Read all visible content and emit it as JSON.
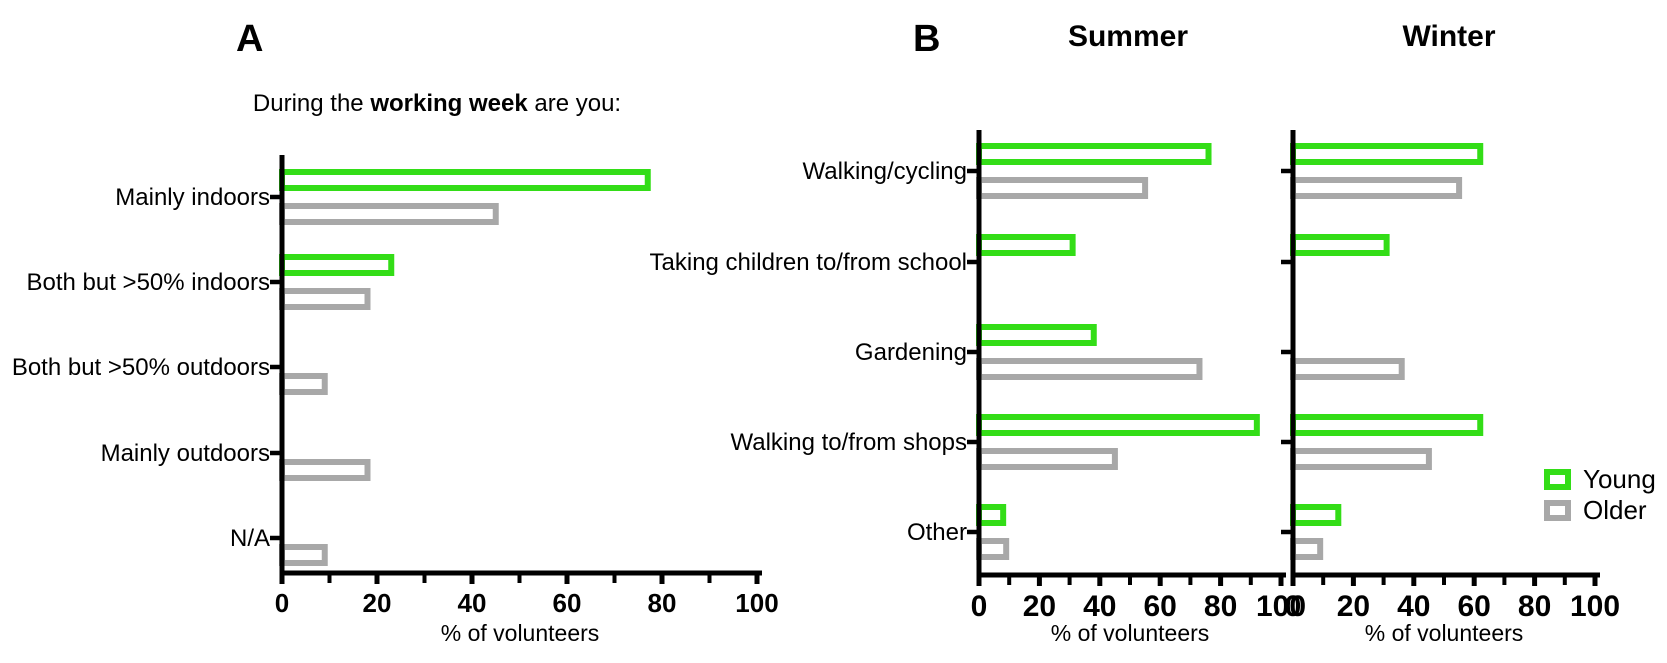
{
  "figure": {
    "background": "#ffffff",
    "colors": {
      "young": "#33DD17",
      "older": "#A8A8A8",
      "axis": "#000000"
    }
  },
  "panel_a": {
    "label": "A",
    "title_prefix": "During the ",
    "title_bold": "working week",
    "title_suffix": " are you:"
  },
  "panel_b": {
    "label": "B"
  },
  "legend": {
    "position": "right",
    "items": [
      {
        "label": "Young",
        "color_key": "young"
      },
      {
        "label": "Older",
        "color_key": "older"
      }
    ]
  },
  "chart_data": [
    {
      "id": "working_week",
      "type": "bar",
      "orientation": "horizontal",
      "title": "During the working week are you:",
      "categories": [
        "Mainly indoors",
        "Both but >50% indoors",
        "Both but >50% outdoors",
        "Mainly outdoors",
        "N/A"
      ],
      "series": [
        {
          "name": "Young",
          "values": [
            77,
            23,
            0,
            0,
            0
          ]
        },
        {
          "name": "Older",
          "values": [
            45,
            18,
            9,
            18,
            9
          ]
        }
      ],
      "xlabel": "% of volunteers",
      "xlim": [
        0,
        100
      ],
      "xticks": [
        0,
        20,
        40,
        60,
        80,
        100
      ],
      "minor_ticks": [
        10,
        30,
        50,
        70,
        90
      ],
      "grid": false
    },
    {
      "id": "summer",
      "type": "bar",
      "orientation": "horizontal",
      "title": "Summer",
      "categories": [
        "Walking/cycling",
        "Taking children to/from school",
        "Gardening",
        "Walking to/from shops",
        "Other"
      ],
      "series": [
        {
          "name": "Young",
          "values": [
            76,
            31,
            38,
            92,
            8
          ]
        },
        {
          "name": "Older",
          "values": [
            55,
            0,
            73,
            45,
            9
          ]
        }
      ],
      "xlabel": "% of volunteers",
      "xlim": [
        0,
        100
      ],
      "xticks": [
        0,
        20,
        40,
        60,
        80,
        100
      ],
      "minor_ticks": [
        10,
        30,
        50,
        70,
        90
      ],
      "grid": false
    },
    {
      "id": "winter",
      "type": "bar",
      "orientation": "horizontal",
      "title": "Winter",
      "categories": [
        "Walking/cycling",
        "Taking children to/from school",
        "Gardening",
        "Walking to/from shops",
        "Other"
      ],
      "series": [
        {
          "name": "Young",
          "values": [
            62,
            31,
            0,
            62,
            15
          ]
        },
        {
          "name": "Older",
          "values": [
            55,
            0,
            36,
            45,
            9
          ]
        }
      ],
      "xlabel": "% of volunteers",
      "xlim": [
        0,
        100
      ],
      "xticks": [
        0,
        20,
        40,
        60,
        80,
        100
      ],
      "minor_ticks": [
        10,
        30,
        50,
        70,
        90
      ],
      "grid": false
    }
  ]
}
